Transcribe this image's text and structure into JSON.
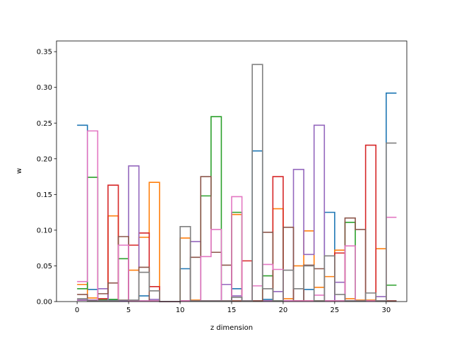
{
  "chart_data": {
    "type": "step",
    "xlabel": "z dimension",
    "ylabel": "w",
    "xlim": [
      -2,
      32
    ],
    "ylim": [
      0,
      0.365
    ],
    "xticks": [
      0,
      5,
      10,
      15,
      20,
      25,
      30
    ],
    "yticks": [
      0.0,
      0.05,
      0.1,
      0.15,
      0.2,
      0.25,
      0.3,
      0.35
    ],
    "xtick_labels": [
      "0",
      "5",
      "10",
      "15",
      "20",
      "25",
      "30"
    ],
    "ytick_labels": [
      "0.00",
      "0.05",
      "0.10",
      "0.15",
      "0.20",
      "0.25",
      "0.30",
      "0.35"
    ],
    "bins": [
      0,
      1,
      2,
      3,
      4,
      5,
      6,
      7,
      8,
      9,
      10,
      11,
      12,
      13,
      14,
      15,
      16,
      17,
      18,
      19,
      20,
      21,
      22,
      23,
      24,
      25,
      26,
      27,
      28,
      29,
      30
    ],
    "series": [
      {
        "color": "#1f77b4",
        "values": [
          0.247,
          0.017,
          0.002,
          0.002,
          0.001,
          0.001,
          0.008,
          0.001,
          0,
          0,
          0.046,
          0.001,
          0.001,
          0.001,
          0.001,
          0.018,
          0.001,
          0.211,
          0.003,
          0.001,
          0.001,
          0.001,
          0.017,
          0.001,
          0.125,
          0.001,
          0.001,
          0.001,
          0.001,
          0.001,
          0.292
        ]
      },
      {
        "color": "#ff7f0e",
        "values": [
          0.024,
          0.005,
          0.003,
          0.12,
          0.002,
          0.044,
          0.09,
          0.167,
          0,
          0,
          0.089,
          0.002,
          0.001,
          0.001,
          0.001,
          0.122,
          0.001,
          0.001,
          0.001,
          0.13,
          0.004,
          0.05,
          0.099,
          0.02,
          0.035,
          0.072,
          0.004,
          0.002,
          0.002,
          0.074,
          0.001
        ]
      },
      {
        "color": "#2ca02c",
        "values": [
          0.018,
          0.174,
          0.003,
          0.003,
          0.06,
          0.001,
          0.001,
          0.001,
          0,
          0,
          0.001,
          0.001,
          0.148,
          0.259,
          0.001,
          0.125,
          0.001,
          0.001,
          0.036,
          0.001,
          0.001,
          0.001,
          0.001,
          0.001,
          0.001,
          0.001,
          0.111,
          0.001,
          0.001,
          0.001,
          0.023
        ]
      },
      {
        "color": "#d62728",
        "values": [
          0.002,
          0.002,
          0.004,
          0.163,
          0.001,
          0.079,
          0.096,
          0.021,
          0,
          0,
          0.001,
          0.001,
          0.001,
          0.001,
          0.001,
          0.001,
          0.057,
          0.001,
          0.001,
          0.175,
          0.001,
          0.001,
          0.001,
          0.001,
          0.001,
          0.068,
          0.001,
          0.001,
          0.219,
          0.001,
          0.001
        ]
      },
      {
        "color": "#9467bd",
        "values": [
          0.002,
          0.002,
          0.018,
          0.001,
          0.001,
          0.19,
          0.001,
          0.003,
          0,
          0,
          0.001,
          0.084,
          0.001,
          0.001,
          0.024,
          0.008,
          0.001,
          0.001,
          0.001,
          0.014,
          0.001,
          0.185,
          0.066,
          0.247,
          0.001,
          0.027,
          0.001,
          0.001,
          0.001,
          0.007,
          0.001
        ]
      },
      {
        "color": "#8c564b",
        "values": [
          0.01,
          0.001,
          0.011,
          0.026,
          0.091,
          0.001,
          0.048,
          0.001,
          0,
          0,
          0.001,
          0.062,
          0.175,
          0.069,
          0.051,
          0.001,
          0.001,
          0.001,
          0.097,
          0.001,
          0.104,
          0.001,
          0.051,
          0.046,
          0.001,
          0.001,
          0.117,
          0.101,
          0.001,
          0.001,
          0.001
        ]
      },
      {
        "color": "#e377c2",
        "values": [
          0.028,
          0.239,
          0.001,
          0.001,
          0.079,
          0.001,
          0.001,
          0.001,
          0,
          0,
          0.001,
          0.001,
          0.063,
          0.101,
          0.001,
          0.147,
          0.001,
          0.022,
          0.052,
          0.045,
          0.001,
          0.001,
          0.001,
          0.009,
          0.001,
          0.001,
          0.078,
          0.001,
          0.001,
          0.001,
          0.118
        ]
      },
      {
        "color": "#7f7f7f",
        "values": [
          0.004,
          0.001,
          0.001,
          0.001,
          0.002,
          0.002,
          0.041,
          0.015,
          0,
          0,
          0.105,
          0.001,
          0.001,
          0.001,
          0.001,
          0.006,
          0.001,
          0.332,
          0.018,
          0.001,
          0.044,
          0.018,
          0.05,
          0.001,
          0.064,
          0.01,
          0.001,
          0.001,
          0.012,
          0.001,
          0.222
        ]
      }
    ]
  }
}
